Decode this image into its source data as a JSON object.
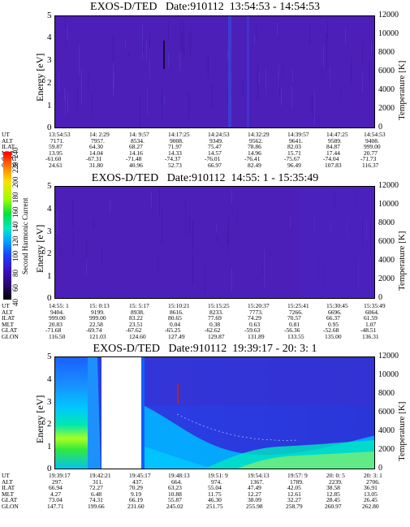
{
  "panels": [
    {
      "title": "EXOS-D/TED   Date:910112  13:54:53 - 14:54:53",
      "ylabel_left": "Energy [eV]",
      "ylabel_right": "Temperature [K]",
      "yticks_left": [
        "5",
        "4",
        "3",
        "2",
        "1",
        "0"
      ],
      "yticks_right": [
        "12000",
        "10000",
        "8000",
        "6000",
        "4000",
        "2000",
        "0"
      ],
      "ephemeris": [
        {
          "label": "UT",
          "values": [
            "13:54:53",
            "14: 2:29",
            "14: 9:57",
            "14:17:25",
            "14:24:53",
            "14:32:29",
            "14:39:57",
            "14:47:25",
            "14:54:53"
          ]
        },
        {
          "label": "ALT",
          "values": [
            "7171.",
            "7957.",
            "8534.",
            "9008.",
            "9349.",
            "9562.",
            "9641.",
            "9589.",
            "9408."
          ]
        },
        {
          "label": "ILAT",
          "values": [
            "59.87",
            "64.30",
            "68.27",
            "71.97",
            "75.47",
            "78.86",
            "82.03",
            "84.87",
            "999.00"
          ]
        },
        {
          "label": "MLT",
          "values": [
            "13.95",
            "14.04",
            "14.16",
            "14.33",
            "14.57",
            "14.96",
            "15.71",
            "17.44",
            "20.77"
          ]
        },
        {
          "label": "GLAT",
          "values": [
            "-61.60",
            "-67.31",
            "-71.48",
            "-74.37",
            "-76.01",
            "-76.41",
            "-75.67",
            "-74.04",
            "-71.73"
          ]
        },
        {
          "label": "GLON",
          "values": [
            "24.61",
            "31.80",
            "40.96",
            "52.73",
            "66.97",
            "82.49",
            "96.49",
            "107.83",
            "116.37"
          ]
        }
      ]
    },
    {
      "title": "EXOS-D/TED   Date:910112  14:55: 1 - 15:35:49",
      "ylabel_left": "Energy [eV]",
      "ylabel_right": "Temperature [K]",
      "yticks_left": [
        "5",
        "4",
        "3",
        "2",
        "1",
        "0"
      ],
      "yticks_right": [
        "12000",
        "10000",
        "8000",
        "6000",
        "4000",
        "2000",
        "0"
      ],
      "ephemeris": [
        {
          "label": "UT",
          "values": [
            "14:55: 1",
            "15: 0:13",
            "15: 5:17",
            "15:10:21",
            "15:15:25",
            "15:20:37",
            "15:25:41",
            "15:30:45",
            "15:35:49"
          ]
        },
        {
          "label": "ALT",
          "values": [
            "9404.",
            "9199.",
            "8938.",
            "8616.",
            "8233.",
            "7773.",
            "7266.",
            "6696.",
            "6064."
          ]
        },
        {
          "label": "ILAT",
          "values": [
            "999.00",
            "999.00",
            "83.22",
            "80.65",
            "77.69",
            "74.29",
            "70.57",
            "66.37",
            "61.59"
          ]
        },
        {
          "label": "MLT",
          "values": [
            "20.83",
            "22.58",
            "23.51",
            "0.04",
            "0.38",
            "0.63",
            "0.81",
            "0.95",
            "1.07"
          ]
        },
        {
          "label": "GLAT",
          "values": [
            "-71.68",
            "-69.74",
            "-67.62",
            "-65.25",
            "-62.62",
            "-59.63",
            "-56.36",
            "-52.68",
            "-48.51"
          ]
        },
        {
          "label": "GLON",
          "values": [
            "116.50",
            "121.03",
            "124.60",
            "127.49",
            "129.87",
            "131.89",
            "133.55",
            "135.00",
            "136.31"
          ]
        }
      ]
    },
    {
      "title": "EXOS-D/TED   Date:910112  19:39:17 - 20: 3: 1",
      "ylabel_left": "Energy [eV]",
      "ylabel_right": "Temperature [K]",
      "yticks_left": [
        "5",
        "4",
        "3",
        "2",
        "1",
        "0"
      ],
      "yticks_right": [
        "12000",
        "10000",
        "8000",
        "6000",
        "4000",
        "2000",
        "0"
      ],
      "ephemeris": [
        {
          "label": "UT",
          "values": [
            "19:39:17",
            "19:42:21",
            "19:45:17",
            "19:48:13",
            "19:51: 9",
            "19:54:13",
            "19:57: 9",
            "20: 0: 5",
            "20: 3: 1"
          ]
        },
        {
          "label": "ALT",
          "values": [
            "297.",
            "311.",
            "437.",
            "664.",
            "974.",
            "1367.",
            "1789.",
            "2239.",
            "2706."
          ]
        },
        {
          "label": "ILAT",
          "values": [
            "66.94",
            "72.27",
            "70.29",
            "63.23",
            "55.04",
            "47.49",
            "42.05",
            "38.58",
            "36.91"
          ]
        },
        {
          "label": "MLT",
          "values": [
            "4.27",
            "6.48",
            "9.19",
            "10.88",
            "11.75",
            "12.27",
            "12.61",
            "12.85",
            "13.05"
          ]
        },
        {
          "label": "GLAT",
          "values": [
            "73.04",
            "74.31",
            "66.19",
            "55.87",
            "46.30",
            "38.09",
            "32.27",
            "28.45",
            "26.45"
          ]
        },
        {
          "label": "GLON",
          "values": [
            "147.71",
            "199.66",
            "231.60",
            "245.02",
            "251.75",
            "255.98",
            "258.79",
            "260.97",
            "262.80"
          ]
        }
      ]
    }
  ],
  "colorbar": {
    "label": "Second Harmonic Current",
    "ticks": [
      "240",
      "220",
      "200",
      "180",
      "160",
      "140",
      "120",
      "100",
      "80",
      "60",
      "40"
    ]
  },
  "chart_data": [
    {
      "type": "heatmap",
      "title": "EXOS-D/TED   Date:910112  13:54:53 - 14:54:53",
      "xlabel": "UT",
      "ylabel": "Energy [eV]",
      "y2label": "Temperature [K]",
      "ylim": [
        0,
        5
      ],
      "y2lim": [
        0,
        12000
      ],
      "x": [
        "13:54:53",
        "14: 2:29",
        "14: 9:57",
        "14:17:25",
        "14:24:53",
        "14:32:29",
        "14:39:57",
        "14:47:25",
        "14:54:53"
      ],
      "colorbar_range": [
        40,
        240
      ],
      "background_level": 75
    },
    {
      "type": "heatmap",
      "title": "EXOS-D/TED   Date:910112  14:55: 1 - 15:35:49",
      "xlabel": "UT",
      "ylabel": "Energy [eV]",
      "y2label": "Temperature [K]",
      "ylim": [
        0,
        5
      ],
      "y2lim": [
        0,
        12000
      ],
      "x": [
        "14:55: 1",
        "15: 0:13",
        "15: 5:17",
        "15:10:21",
        "15:15:25",
        "15:20:37",
        "15:25:41",
        "15:30:45",
        "15:35:49"
      ],
      "colorbar_range": [
        40,
        240
      ],
      "background_level": 75
    },
    {
      "type": "heatmap",
      "title": "EXOS-D/TED   Date:910112  19:39:17 - 20: 3: 1",
      "xlabel": "UT",
      "ylabel": "Energy [eV]",
      "y2label": "Temperature [K]",
      "ylim": [
        0,
        5
      ],
      "y2lim": [
        0,
        12000
      ],
      "x": [
        "19:39:17",
        "19:42:21",
        "19:45:17",
        "19:48:13",
        "19:51: 9",
        "19:54:13",
        "19:57: 9",
        "20: 0: 5",
        "20: 3: 1"
      ],
      "colorbar_range": [
        40,
        240
      ],
      "data_gap": [
        "19:42:21",
        "19:45:17"
      ]
    }
  ]
}
